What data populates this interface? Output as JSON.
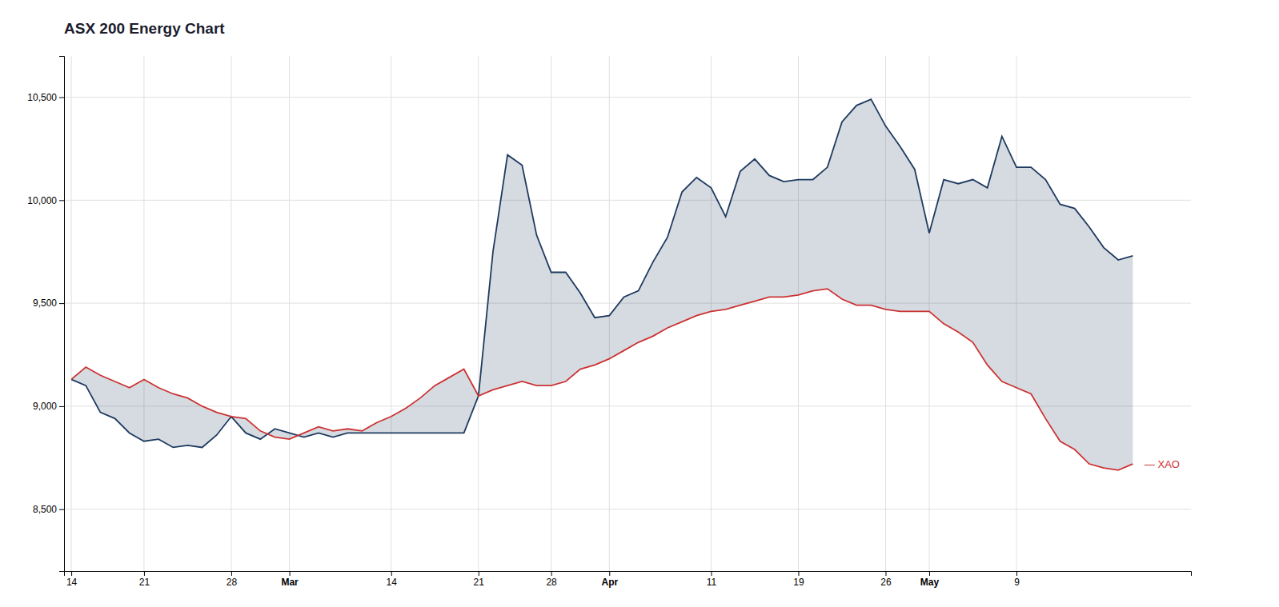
{
  "chart_data": {
    "type": "line",
    "title": "ASX 200 Energy Chart",
    "categories": [
      "14",
      null,
      null,
      null,
      null,
      "21",
      null,
      null,
      null,
      null,
      null,
      "28",
      null,
      null,
      null,
      "Mar",
      null,
      null,
      null,
      null,
      null,
      null,
      "14",
      null,
      null,
      null,
      null,
      null,
      "21",
      null,
      null,
      null,
      null,
      "28",
      null,
      null,
      null,
      "Apr",
      null,
      null,
      null,
      null,
      null,
      null,
      "11",
      null,
      null,
      null,
      null,
      null,
      "19",
      null,
      null,
      null,
      null,
      null,
      "26",
      null,
      null,
      "May",
      null,
      null,
      null,
      null,
      null,
      "9",
      null,
      null,
      null,
      null,
      null,
      null,
      null,
      null
    ],
    "series": [
      {
        "color": "#1e3a5f",
        "values": [
          9130,
          9100,
          8970,
          8940,
          8870,
          8830,
          8840,
          8800,
          8810,
          8800,
          8860,
          8950,
          8870,
          8840,
          8890,
          8870,
          8850,
          8870,
          8850,
          8870,
          8870,
          8870,
          8870,
          8870,
          8870,
          8870,
          8870,
          8870,
          9050,
          9750,
          10220,
          10170,
          9830,
          9650,
          9650,
          9550,
          9430,
          9440,
          9530,
          9560,
          9700,
          9820,
          10040,
          10110,
          10060,
          9920,
          10140,
          10200,
          10120,
          10090,
          10100,
          10100,
          10160,
          10380,
          10460,
          10490,
          10360,
          10260,
          10150,
          9840,
          10100,
          10080,
          10100,
          10060,
          10310,
          10160,
          10160,
          10100,
          9980,
          9960,
          9870,
          9770,
          9710,
          9730
        ]
      },
      {
        "color": "#cc3333",
        "values": [
          9130,
          9190,
          9150,
          9120,
          9090,
          9130,
          9090,
          9060,
          9040,
          9000,
          8970,
          8950,
          8940,
          8880,
          8850,
          8840,
          8870,
          8900,
          8880,
          8890,
          8880,
          8920,
          8950,
          8990,
          9040,
          9100,
          9140,
          9180,
          9050,
          9080,
          9100,
          9120,
          9100,
          9100,
          9120,
          9180,
          9200,
          9230,
          9270,
          9310,
          9340,
          9380,
          9410,
          9440,
          9460,
          9470,
          9490,
          9510,
          9530,
          9530,
          9540,
          9560,
          9570,
          9520,
          9490,
          9490,
          9470,
          9460,
          9460,
          9460,
          9400,
          9360,
          9310,
          9200,
          9120,
          9090,
          9060,
          8940,
          8830,
          8790,
          8720,
          8700,
          8690,
          8720
        ]
      }
    ],
    "annotations": [
      {
        "text": "—  XAO",
        "color": "#cc3333"
      }
    ],
    "ylim": [
      8200,
      10700
    ],
    "yticks": [
      {
        "value": 8500,
        "label": "8,500"
      },
      {
        "value": 9000,
        "label": "9,000"
      },
      {
        "value": 9500,
        "label": "9,500"
      },
      {
        "value": 10000,
        "label": "10,000"
      },
      {
        "value": 10500,
        "label": "10,500"
      }
    ],
    "grid": true
  }
}
